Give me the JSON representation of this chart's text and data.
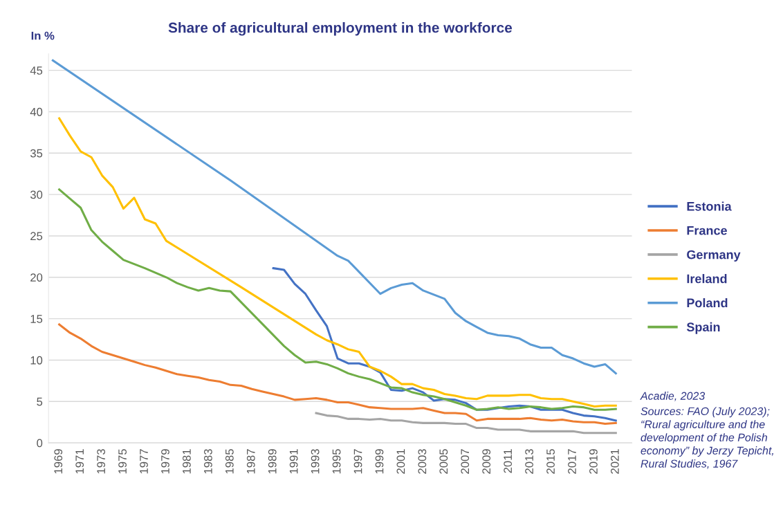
{
  "chart_data": {
    "type": "line",
    "title": "Share of agricultural employment in the workforce",
    "ylabel": "In %",
    "xlim": [
      1968,
      2022.5
    ],
    "xticks": [
      1969,
      1971,
      1973,
      1975,
      1977,
      1979,
      1981,
      1983,
      1985,
      1987,
      1989,
      1991,
      1993,
      1995,
      1997,
      1999,
      2001,
      2003,
      2005,
      2007,
      2009,
      2011,
      2013,
      2015,
      2017,
      2019,
      2021
    ],
    "ylim": [
      0,
      47
    ],
    "yticks": [
      0,
      5,
      10,
      15,
      20,
      25,
      30,
      35,
      40,
      45
    ],
    "grid": "y",
    "legend": "right",
    "marker": "none",
    "line_style": "solid",
    "annotations": [
      "Acadie, 2023",
      "Sources: FAO (July 2023);\n“Rural agriculture and the\ndevelopment of the Polish\neconomy” by Jerzy Tepicht,\nRural Studies, 1967"
    ],
    "series": [
      {
        "name": "Estonia",
        "color": "#4472c4",
        "x": [
          1989,
          1990,
          1991,
          1992,
          1993,
          1994,
          1995,
          1996,
          1997,
          1998,
          1999,
          2000,
          2001,
          2002,
          2003,
          2004,
          2005,
          2006,
          2007,
          2008,
          2009,
          2010,
          2011,
          2012,
          2013,
          2014,
          2015,
          2016,
          2017,
          2018,
          2019,
          2020,
          2021
        ],
        "values": [
          21.1,
          20.9,
          19.2,
          18.0,
          16.0,
          14.1,
          10.2,
          9.6,
          9.6,
          9.2,
          8.5,
          6.4,
          6.3,
          6.6,
          6.1,
          5.1,
          5.3,
          5.2,
          4.8,
          4.0,
          4.0,
          4.2,
          4.4,
          4.5,
          4.4,
          4.0,
          4.0,
          4.0,
          3.6,
          3.3,
          3.2,
          3.0,
          2.7
        ]
      },
      {
        "name": "France",
        "color": "#ed7d31",
        "x": [
          1969,
          1970,
          1971,
          1972,
          1973,
          1974,
          1975,
          1976,
          1977,
          1978,
          1979,
          1980,
          1981,
          1982,
          1983,
          1984,
          1985,
          1986,
          1987,
          1988,
          1989,
          1990,
          1991,
          1992,
          1993,
          1994,
          1995,
          1996,
          1997,
          1998,
          1999,
          2000,
          2001,
          2002,
          2003,
          2004,
          2005,
          2006,
          2007,
          2008,
          2009,
          2010,
          2011,
          2012,
          2013,
          2014,
          2015,
          2016,
          2017,
          2018,
          2019,
          2020,
          2021
        ],
        "values": [
          14.3,
          13.3,
          12.6,
          11.7,
          11.0,
          10.6,
          10.2,
          9.8,
          9.4,
          9.1,
          8.7,
          8.3,
          8.1,
          7.9,
          7.6,
          7.4,
          7.0,
          6.9,
          6.5,
          6.2,
          5.9,
          5.6,
          5.2,
          5.3,
          5.4,
          5.2,
          4.9,
          4.9,
          4.6,
          4.3,
          4.2,
          4.1,
          4.1,
          4.1,
          4.2,
          3.9,
          3.6,
          3.6,
          3.5,
          2.7,
          2.9,
          2.9,
          2.9,
          2.9,
          3.0,
          2.8,
          2.7,
          2.8,
          2.6,
          2.5,
          2.5,
          2.3,
          2.4
        ]
      },
      {
        "name": "Germany",
        "color": "#a5a5a5",
        "x": [
          1993,
          1994,
          1995,
          1996,
          1997,
          1998,
          1999,
          2000,
          2001,
          2002,
          2003,
          2004,
          2005,
          2006,
          2007,
          2008,
          2009,
          2010,
          2011,
          2012,
          2013,
          2014,
          2015,
          2016,
          2017,
          2018,
          2019,
          2020,
          2021
        ],
        "values": [
          3.6,
          3.3,
          3.2,
          2.9,
          2.9,
          2.8,
          2.9,
          2.7,
          2.7,
          2.5,
          2.4,
          2.4,
          2.4,
          2.3,
          2.3,
          1.8,
          1.8,
          1.6,
          1.6,
          1.6,
          1.4,
          1.4,
          1.4,
          1.4,
          1.4,
          1.2,
          1.2,
          1.2,
          1.2
        ]
      },
      {
        "name": "Ireland",
        "color": "#ffc000",
        "x": [
          1969,
          1970,
          1971,
          1972,
          1973,
          1974,
          1975,
          1976,
          1977,
          1978,
          1979,
          1986,
          1993,
          1994,
          1995,
          1996,
          1997,
          1998,
          1999,
          2000,
          2001,
          2002,
          2003,
          2004,
          2005,
          2006,
          2007,
          2008,
          2009,
          2010,
          2011,
          2012,
          2013,
          2014,
          2015,
          2016,
          2017,
          2018,
          2019,
          2020,
          2021
        ],
        "values": [
          39.2,
          37.1,
          35.2,
          34.5,
          32.3,
          30.9,
          28.3,
          29.6,
          27.0,
          26.5,
          24.4,
          18.8,
          13.1,
          12.4,
          11.9,
          11.3,
          11.0,
          9.2,
          8.7,
          8.0,
          7.1,
          7.1,
          6.6,
          6.4,
          5.9,
          5.7,
          5.4,
          5.3,
          5.7,
          5.7,
          5.7,
          5.8,
          5.8,
          5.4,
          5.3,
          5.3,
          5.0,
          4.7,
          4.4,
          4.5,
          4.5
        ]
      },
      {
        "name": "Poland",
        "color": "#5b9bd5",
        "x": [
          1968.4,
          1985,
          1995,
          1996,
          1999,
          2000,
          2001,
          2002,
          2003,
          2004,
          2005,
          2006,
          2007,
          2008,
          2009,
          2010,
          2011,
          2012,
          2013,
          2014,
          2015,
          2016,
          2017,
          2018,
          2019,
          2020,
          2021
        ],
        "values": [
          46.2,
          31.7,
          22.6,
          22.0,
          18.0,
          18.7,
          19.1,
          19.3,
          18.4,
          17.9,
          17.4,
          15.7,
          14.7,
          14.0,
          13.3,
          13.0,
          12.9,
          12.6,
          11.9,
          11.5,
          11.5,
          10.6,
          10.2,
          9.6,
          9.2,
          9.5,
          8.4
        ]
      },
      {
        "name": "Spain",
        "color": "#70ad47",
        "x": [
          1969,
          1970,
          1971,
          1972,
          1973,
          1974,
          1975,
          1977,
          1979,
          1980,
          1981,
          1982,
          1983,
          1984,
          1985,
          1990,
          1991,
          1992,
          1993,
          1994,
          1995,
          1996,
          1997,
          1998,
          1999,
          2000,
          2001,
          2002,
          2003,
          2004,
          2005,
          2006,
          2007,
          2008,
          2009,
          2010,
          2011,
          2012,
          2013,
          2014,
          2015,
          2016,
          2017,
          2018,
          2019,
          2020,
          2021
        ],
        "values": [
          30.6,
          29.5,
          28.4,
          25.7,
          24.3,
          23.2,
          22.1,
          21.1,
          20.0,
          19.3,
          18.8,
          18.4,
          18.7,
          18.4,
          18.3,
          11.7,
          10.6,
          9.7,
          9.8,
          9.5,
          9.0,
          8.4,
          8.0,
          7.7,
          7.2,
          6.7,
          6.6,
          6.1,
          5.8,
          5.6,
          5.3,
          4.9,
          4.5,
          4.0,
          4.1,
          4.3,
          4.1,
          4.2,
          4.4,
          4.3,
          4.1,
          4.2,
          4.4,
          4.3,
          4.0,
          4.0,
          4.1
        ]
      }
    ]
  }
}
